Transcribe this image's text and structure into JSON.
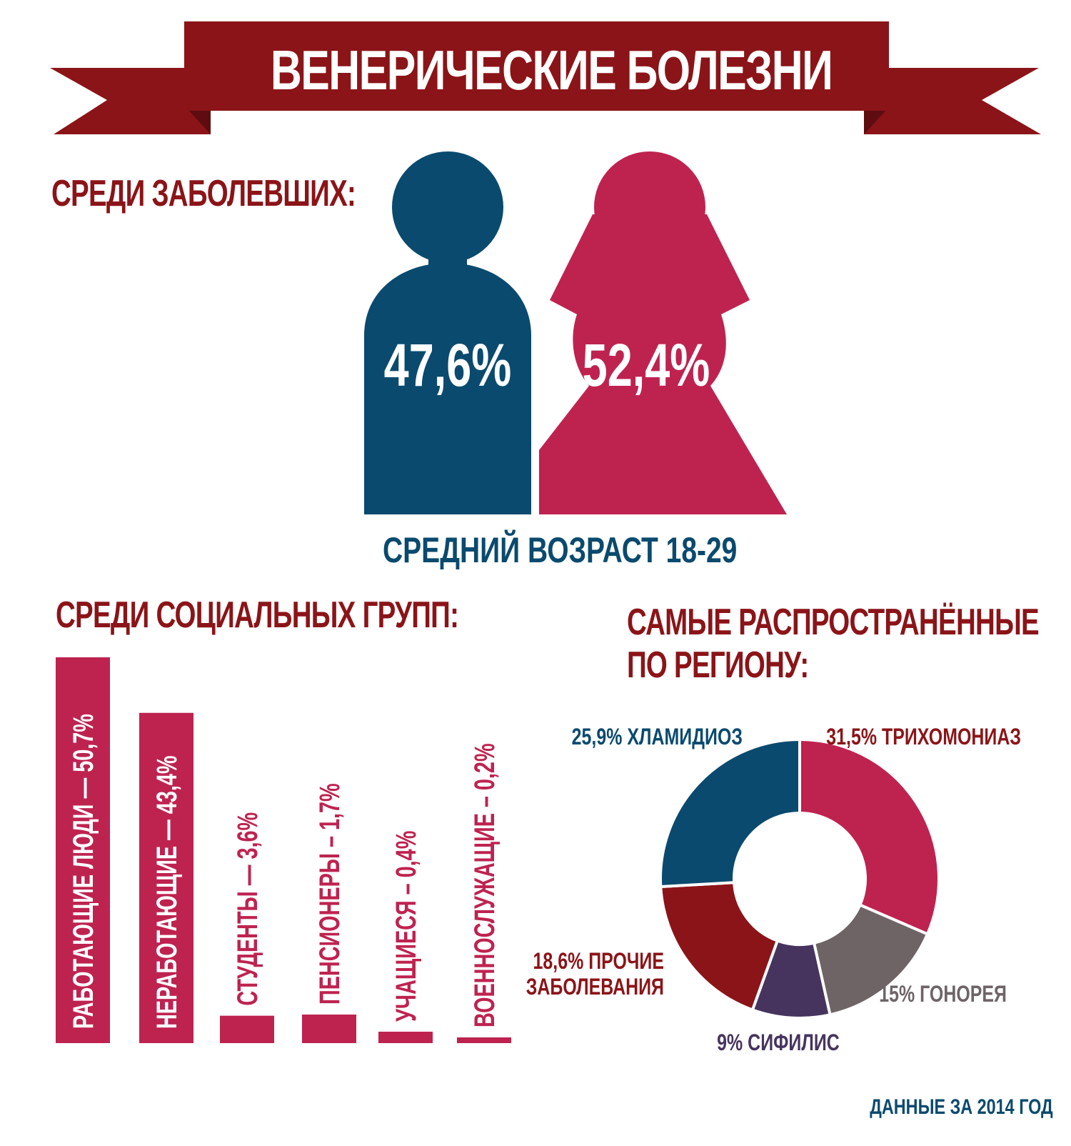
{
  "title": "ВЕНЕРИЧЕСКИЕ БОЛЕЗНИ",
  "colors": {
    "banner": "#8b1418",
    "male": "#0a4a6e",
    "female": "#be2350",
    "heading": "#8b1418",
    "avg_age": "#0a4a6e"
  },
  "gender": {
    "heading": "СРЕДИ ЗАБОЛЕВШИХ:",
    "male_pct": "47,6%",
    "female_pct": "52,4%",
    "avg_age": "СРЕДНИЙ ВОЗРАСТ 18-29"
  },
  "social": {
    "heading": "СРЕДИ СОЦИАЛЬНЫХ ГРУПП:"
  },
  "region": {
    "heading_line1": "САМЫЕ РАСПРОСТРАНЁННЫЕ",
    "heading_line2": "ПО РЕГИОНУ:"
  },
  "source": "ДАННЫЕ ЗА 2014 ГОД",
  "chart_data": [
    {
      "type": "bar",
      "title": "СРЕДИ СОЦИАЛЬНЫХ ГРУПП:",
      "categories": [
        "РАБОТАЮЩИЕ ЛЮДИ",
        "НЕРАБОТАЮЩИЕ",
        "СТУДЕНТЫ",
        "ПЕНСИОНЕРЫ",
        "УЧАЩИЕСЯ",
        "ВОЕННОСЛУЖАЩИЕ"
      ],
      "values": [
        50.7,
        43.4,
        3.6,
        1.7,
        0.4,
        0.2
      ],
      "labels": [
        "РАБОТАЮЩИЕ ЛЮДИ — 50,7%",
        "НЕРАБОТАЮЩИЕ — 43,4%",
        "СТУДЕНТЫ — 3,6%",
        "ПЕНСИОНЕРЫ – 1,7%",
        "УЧАЩИЕСЯ – 0,4%",
        "ВОЕННОСЛУЖАЩИЕ – 0,2%"
      ],
      "color": "#be2350"
    },
    {
      "type": "pie",
      "title": "САМЫЕ РАСПРОСТРАНЁННЫЕ ПО РЕГИОНУ:",
      "donut": true,
      "categories": [
        "ТРИХОМОНИАЗ",
        "ГОНОРЕЯ",
        "СИФИЛИС",
        "ПРОЧИЕ ЗАБОЛЕВАНИЯ",
        "ХЛАМИДИОЗ"
      ],
      "values": [
        31.5,
        15,
        9,
        18.6,
        25.9
      ],
      "labels": [
        "31,5% ТРИХОМОНИАЗ",
        "15% ГОНОРЕЯ",
        "9% СИФИЛИС",
        "18,6% ПРОЧИЕ ЗАБОЛЕВАНИЯ",
        "25,9% ХЛАМИДИОЗ"
      ],
      "colors": [
        "#be2350",
        "#6e6466",
        "#46345e",
        "#8b1418",
        "#0a4a6e"
      ]
    }
  ]
}
